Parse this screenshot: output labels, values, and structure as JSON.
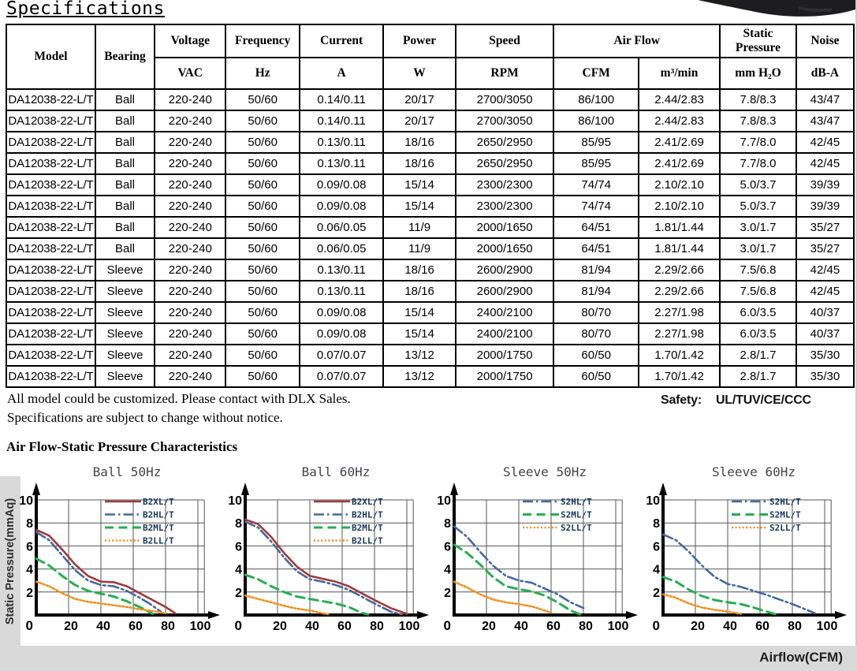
{
  "page": {
    "title": "Specifications"
  },
  "notes": {
    "line1": "All model could be customized. Please contact with DLX Sales.",
    "line2": "Specifications are subject to change without notice."
  },
  "safety": {
    "label": "Safety:",
    "value": "UL/TUV/CE/CCC"
  },
  "section2_title": "Air Flow-Static Pressure Characteristics",
  "colors": {
    "strip_grey": "#d9d9d9",
    "series_red": "#9e3b38",
    "series_blue": "#44699e",
    "series_green": "#27ae4f",
    "series_orange": "#f0901e",
    "legend_text": "#17365d",
    "chart_title": "#43444a"
  },
  "table": {
    "header": {
      "model": "Model",
      "bearing": "Bearing",
      "voltage": "Voltage",
      "voltage_unit": "VAC",
      "frequency": "Frequency",
      "frequency_unit": "Hz",
      "current": "Current",
      "current_unit": "A",
      "power": "Power",
      "power_unit": "W",
      "speed": "Speed",
      "speed_unit": "RPM",
      "airflow": "Air Flow",
      "airflow_unit1": "CFM",
      "airflow_unit2": "m³/min",
      "static_pressure": "Static Pressure",
      "static_pressure_unit": "mm H₂O",
      "noise": "Noise",
      "noise_unit": "dB-A"
    },
    "rows": [
      [
        "DA12038-22-L/T",
        "Ball",
        "220-240",
        "50/60",
        "0.14/0.11",
        "20/17",
        "2700/3050",
        "86/100",
        "2.44/2.83",
        "7.8/8.3",
        "43/47"
      ],
      [
        "DA12038-22-L/T",
        "Ball",
        "220-240",
        "50/60",
        "0.14/0.11",
        "20/17",
        "2700/3050",
        "86/100",
        "2.44/2.83",
        "7.8/8.3",
        "43/47"
      ],
      [
        "DA12038-22-L/T",
        "Ball",
        "220-240",
        "50/60",
        "0.13/0.11",
        "18/16",
        "2650/2950",
        "85/95",
        "2.41/2.69",
        "7.7/8.0",
        "42/45"
      ],
      [
        "DA12038-22-L/T",
        "Ball",
        "220-240",
        "50/60",
        "0.13/0.11",
        "18/16",
        "2650/2950",
        "85/95",
        "2.41/2.69",
        "7.7/8.0",
        "42/45"
      ],
      [
        "DA12038-22-L/T",
        "Ball",
        "220-240",
        "50/60",
        "0.09/0.08",
        "15/14",
        "2300/2300",
        "74/74",
        "2.10/2.10",
        "5.0/3.7",
        "39/39"
      ],
      [
        "DA12038-22-L/T",
        "Ball",
        "220-240",
        "50/60",
        "0.09/0.08",
        "15/14",
        "2300/2300",
        "74/74",
        "2.10/2.10",
        "5.0/3.7",
        "39/39"
      ],
      [
        "DA12038-22-L/T",
        "Ball",
        "220-240",
        "50/60",
        "0.06/0.05",
        "11/9",
        "2000/1650",
        "64/51",
        "1.81/1.44",
        "3.0/1.7",
        "35/27"
      ],
      [
        "DA12038-22-L/T",
        "Ball",
        "220-240",
        "50/60",
        "0.06/0.05",
        "11/9",
        "2000/1650",
        "64/51",
        "1.81/1.44",
        "3.0/1.7",
        "35/27"
      ],
      [
        "DA12038-22-L/T",
        "Sleeve",
        "220-240",
        "50/60",
        "0.13/0.11",
        "18/16",
        "2600/2900",
        "81/94",
        "2.29/2.66",
        "7.5/6.8",
        "42/45"
      ],
      [
        "DA12038-22-L/T",
        "Sleeve",
        "220-240",
        "50/60",
        "0.13/0.11",
        "18/16",
        "2600/2900",
        "81/94",
        "2.29/2.66",
        "7.5/6.8",
        "42/45"
      ],
      [
        "DA12038-22-L/T",
        "Sleeve",
        "220-240",
        "50/60",
        "0.09/0.08",
        "15/14",
        "2400/2100",
        "80/70",
        "2.27/1.98",
        "6.0/3.5",
        "40/37"
      ],
      [
        "DA12038-22-L/T",
        "Sleeve",
        "220-240",
        "50/60",
        "0.09/0.08",
        "15/14",
        "2400/2100",
        "80/70",
        "2.27/1.98",
        "6.0/3.5",
        "40/37"
      ],
      [
        "DA12038-22-L/T",
        "Sleeve",
        "220-240",
        "50/60",
        "0.07/0.07",
        "13/12",
        "2000/1750",
        "60/50",
        "1.70/1.42",
        "2.8/1.7",
        "35/30"
      ],
      [
        "DA12038-22-L/T",
        "Sleeve",
        "220-240",
        "50/60",
        "0.07/0.07",
        "13/12",
        "2000/1750",
        "60/50",
        "1.70/1.42",
        "2.8/1.7",
        "35/30"
      ]
    ]
  },
  "charts_axis": {
    "ylabel": "Static Pressure(mmAq)",
    "xlabel": "Airflow(CFM)"
  },
  "chart_data": [
    {
      "type": "line",
      "title": "Ball 50Hz",
      "xlabel": "Airflow(CFM)",
      "ylabel": "Static Pressure(mmAq)",
      "xlim": [
        0,
        110
      ],
      "ylim": [
        0,
        11
      ],
      "xticks": [
        0,
        20,
        40,
        60,
        80,
        100
      ],
      "yticks": [
        0,
        2,
        4,
        6,
        8,
        10
      ],
      "grid": true,
      "legend_position": "top-right",
      "series": [
        {
          "name": "B2XL/T",
          "color": "#9e3b38",
          "style": "solid",
          "points": [
            [
              0,
              7.4
            ],
            [
              8,
              6.9
            ],
            [
              16,
              5.7
            ],
            [
              24,
              4.4
            ],
            [
              32,
              3.4
            ],
            [
              40,
              2.9
            ],
            [
              48,
              2.85
            ],
            [
              56,
              2.5
            ],
            [
              64,
              1.9
            ],
            [
              72,
              1.3
            ],
            [
              80,
              0.7
            ],
            [
              86,
              0.15
            ]
          ]
        },
        {
          "name": "B2HL/T",
          "color": "#44699e",
          "style": "dashdot",
          "points": [
            [
              0,
              7.2
            ],
            [
              8,
              6.5
            ],
            [
              16,
              5.2
            ],
            [
              24,
              3.9
            ],
            [
              32,
              3.0
            ],
            [
              40,
              2.6
            ],
            [
              48,
              2.5
            ],
            [
              56,
              2.1
            ],
            [
              64,
              1.5
            ],
            [
              70,
              1.0
            ],
            [
              77,
              0.3
            ]
          ]
        },
        {
          "name": "B2ML/T",
          "color": "#27ae4f",
          "style": "dash",
          "points": [
            [
              0,
              4.9
            ],
            [
              8,
              4.3
            ],
            [
              16,
              3.4
            ],
            [
              24,
              2.6
            ],
            [
              32,
              2.1
            ],
            [
              40,
              1.85
            ],
            [
              48,
              1.6
            ],
            [
              56,
              1.2
            ],
            [
              64,
              0.7
            ],
            [
              72,
              0.1
            ]
          ]
        },
        {
          "name": "B2LL/T",
          "color": "#f0901e",
          "style": "dot",
          "points": [
            [
              0,
              2.9
            ],
            [
              8,
              2.5
            ],
            [
              16,
              1.9
            ],
            [
              24,
              1.4
            ],
            [
              32,
              1.15
            ],
            [
              40,
              1.0
            ],
            [
              48,
              0.85
            ],
            [
              56,
              0.7
            ],
            [
              64,
              0.5
            ],
            [
              72,
              0.35
            ],
            [
              80,
              0.15
            ]
          ]
        }
      ]
    },
    {
      "type": "line",
      "title": "Ball 60Hz",
      "xlabel": "Airflow(CFM)",
      "ylabel": "Static Pressure(mmAq)",
      "xlim": [
        0,
        110
      ],
      "ylim": [
        0,
        11
      ],
      "xticks": [
        0,
        20,
        40,
        60,
        80,
        100
      ],
      "yticks": [
        0,
        2,
        4,
        6,
        8,
        10
      ],
      "grid": true,
      "legend_position": "top-right",
      "series": [
        {
          "name": "B2XL/T",
          "color": "#9e3b38",
          "style": "solid",
          "points": [
            [
              0,
              8.3
            ],
            [
              8,
              7.9
            ],
            [
              16,
              6.8
            ],
            [
              24,
              5.4
            ],
            [
              32,
              4.2
            ],
            [
              40,
              3.4
            ],
            [
              48,
              3.15
            ],
            [
              56,
              2.9
            ],
            [
              64,
              2.5
            ],
            [
              72,
              1.9
            ],
            [
              80,
              1.3
            ],
            [
              90,
              0.6
            ],
            [
              100,
              0.1
            ]
          ]
        },
        {
          "name": "B2HL/T",
          "color": "#44699e",
          "style": "dashdot",
          "points": [
            [
              0,
              8.1
            ],
            [
              8,
              7.6
            ],
            [
              16,
              6.4
            ],
            [
              24,
              5.0
            ],
            [
              32,
              3.8
            ],
            [
              40,
              3.1
            ],
            [
              48,
              2.9
            ],
            [
              56,
              2.6
            ],
            [
              64,
              2.2
            ],
            [
              72,
              1.6
            ],
            [
              80,
              1.0
            ],
            [
              90,
              0.3
            ],
            [
              97,
              0.05
            ]
          ]
        },
        {
          "name": "B2ML/T",
          "color": "#27ae4f",
          "style": "dash",
          "points": [
            [
              0,
              3.5
            ],
            [
              8,
              3.1
            ],
            [
              16,
              2.5
            ],
            [
              24,
              2.0
            ],
            [
              32,
              1.6
            ],
            [
              40,
              1.4
            ],
            [
              48,
              1.2
            ],
            [
              56,
              1.0
            ],
            [
              64,
              0.7
            ],
            [
              72,
              0.2
            ],
            [
              76,
              0.05
            ]
          ]
        },
        {
          "name": "B2LL/T",
          "color": "#f0901e",
          "style": "dot",
          "points": [
            [
              0,
              1.7
            ],
            [
              8,
              1.4
            ],
            [
              16,
              1.1
            ],
            [
              24,
              0.8
            ],
            [
              32,
              0.55
            ],
            [
              40,
              0.4
            ],
            [
              48,
              0.15
            ],
            [
              52,
              0.05
            ]
          ]
        }
      ]
    },
    {
      "type": "line",
      "title": "Sleeve 50Hz",
      "xlabel": "Airflow(CFM)",
      "ylabel": "Static Pressure(mmAq)",
      "xlim": [
        0,
        110
      ],
      "ylim": [
        0,
        11
      ],
      "xticks": [
        0,
        20,
        40,
        60,
        80,
        100
      ],
      "yticks": [
        0,
        2,
        4,
        6,
        8,
        10
      ],
      "grid": true,
      "legend_position": "top-right",
      "series": [
        {
          "name": "S2HL/T",
          "color": "#44699e",
          "style": "dashdot",
          "points": [
            [
              0,
              7.7
            ],
            [
              8,
              6.8
            ],
            [
              16,
              5.5
            ],
            [
              24,
              4.3
            ],
            [
              32,
              3.4
            ],
            [
              40,
              3.0
            ],
            [
              48,
              2.8
            ],
            [
              56,
              2.3
            ],
            [
              64,
              1.8
            ],
            [
              72,
              1.1
            ],
            [
              80,
              0.6
            ]
          ]
        },
        {
          "name": "S2ML/T",
          "color": "#27ae4f",
          "style": "dash",
          "points": [
            [
              0,
              6.1
            ],
            [
              8,
              5.4
            ],
            [
              16,
              4.4
            ],
            [
              24,
              3.3
            ],
            [
              32,
              2.5
            ],
            [
              40,
              2.25
            ],
            [
              48,
              2.05
            ],
            [
              56,
              1.7
            ],
            [
              64,
              1.1
            ],
            [
              72,
              0.4
            ],
            [
              78,
              0.05
            ]
          ]
        },
        {
          "name": "S2LL/T",
          "color": "#f0901e",
          "style": "dot",
          "points": [
            [
              0,
              2.9
            ],
            [
              8,
              2.4
            ],
            [
              16,
              1.8
            ],
            [
              24,
              1.35
            ],
            [
              32,
              1.1
            ],
            [
              40,
              0.95
            ],
            [
              48,
              0.75
            ],
            [
              56,
              0.4
            ],
            [
              60,
              0.2
            ]
          ]
        }
      ]
    },
    {
      "type": "line",
      "title": "Sleeve 60Hz",
      "xlabel": "Airflow(CFM)",
      "ylabel": "Static Pressure(mmAq)",
      "xlim": [
        0,
        110
      ],
      "ylim": [
        0,
        11
      ],
      "xticks": [
        0,
        20,
        40,
        60,
        80,
        100
      ],
      "yticks": [
        0,
        2,
        4,
        6,
        8,
        10
      ],
      "grid": true,
      "legend_position": "top-right",
      "series": [
        {
          "name": "S2HL/T",
          "color": "#44699e",
          "style": "dashdot",
          "points": [
            [
              0,
              7.0
            ],
            [
              8,
              6.5
            ],
            [
              16,
              5.5
            ],
            [
              24,
              4.3
            ],
            [
              32,
              3.3
            ],
            [
              40,
              2.7
            ],
            [
              48,
              2.45
            ],
            [
              56,
              2.1
            ],
            [
              64,
              1.75
            ],
            [
              72,
              1.35
            ],
            [
              80,
              0.95
            ],
            [
              88,
              0.5
            ],
            [
              94,
              0.15
            ]
          ]
        },
        {
          "name": "S2ML/T",
          "color": "#27ae4f",
          "style": "dash",
          "points": [
            [
              0,
              3.3
            ],
            [
              8,
              2.9
            ],
            [
              16,
              2.2
            ],
            [
              24,
              1.65
            ],
            [
              32,
              1.3
            ],
            [
              40,
              1.1
            ],
            [
              48,
              0.95
            ],
            [
              56,
              0.65
            ],
            [
              64,
              0.3
            ],
            [
              70,
              0.05
            ]
          ]
        },
        {
          "name": "S2LL/T",
          "color": "#f0901e",
          "style": "dot",
          "points": [
            [
              0,
              1.8
            ],
            [
              8,
              1.5
            ],
            [
              16,
              1.0
            ],
            [
              24,
              0.65
            ],
            [
              32,
              0.45
            ],
            [
              40,
              0.3
            ],
            [
              48,
              0.1
            ]
          ]
        }
      ]
    }
  ]
}
